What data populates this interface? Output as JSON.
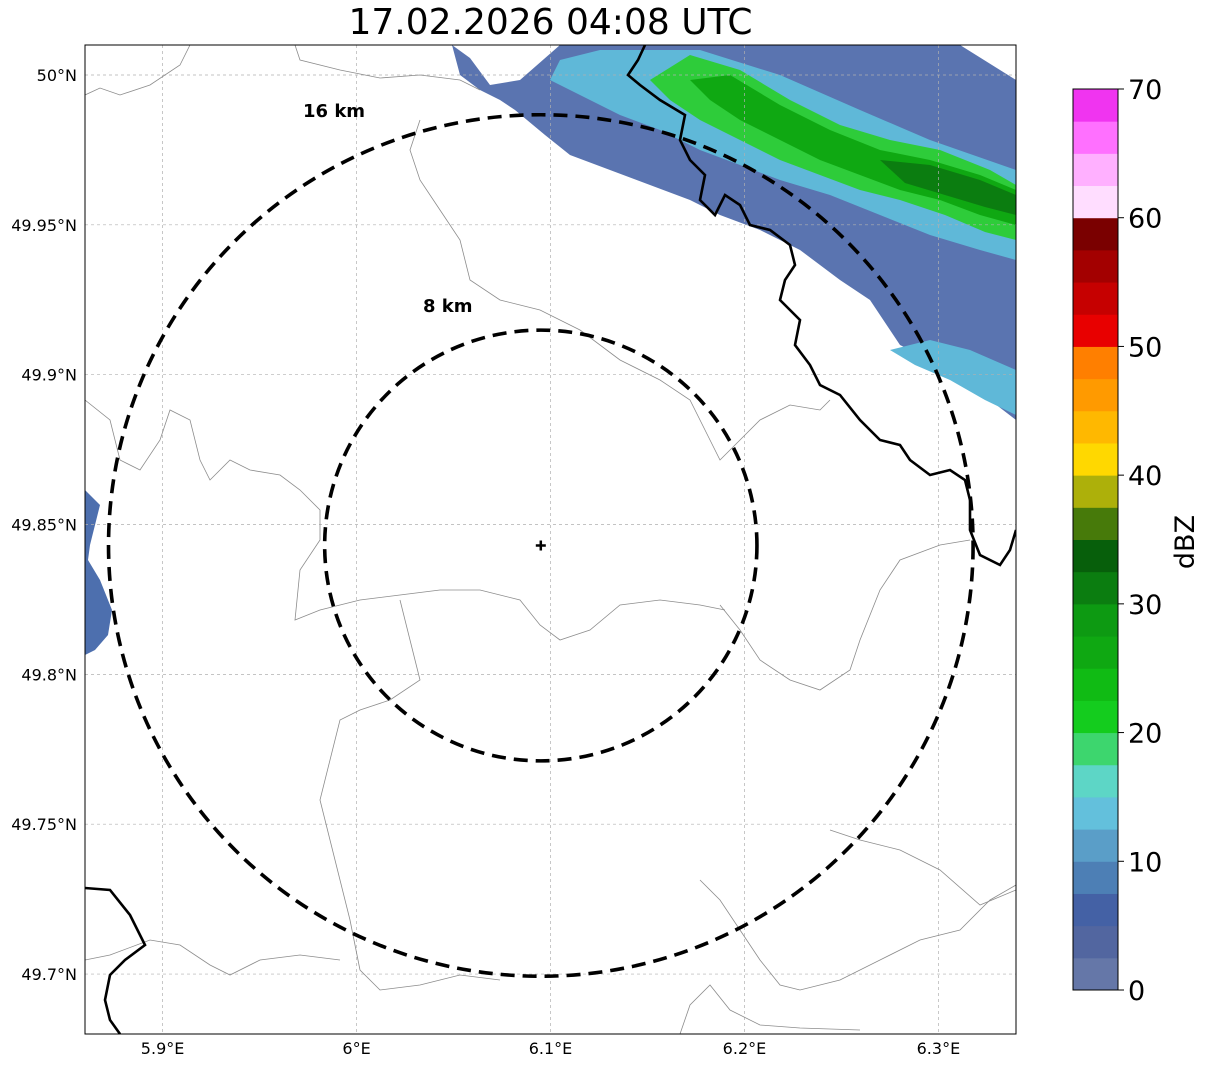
{
  "title": "17.02.2026 04:08 UTC",
  "map": {
    "lon_range": [
      5.86,
      6.34
    ],
    "lat_range": [
      49.68,
      50.01
    ],
    "center": {
      "lon": 6.095,
      "lat": 49.843
    },
    "x_ticks": [
      {
        "value": 5.9,
        "label": "5.9°E"
      },
      {
        "value": 6.0,
        "label": "6°E"
      },
      {
        "value": 6.1,
        "label": "6.1°E"
      },
      {
        "value": 6.2,
        "label": "6.2°E"
      },
      {
        "value": 6.3,
        "label": "6.3°E"
      }
    ],
    "y_ticks": [
      {
        "value": 49.7,
        "label": "49.7°N"
      },
      {
        "value": 49.75,
        "label": "49.75°N"
      },
      {
        "value": 49.8,
        "label": "49.8°N"
      },
      {
        "value": 49.85,
        "label": "49.85°N"
      },
      {
        "value": 49.9,
        "label": "49.9°N"
      },
      {
        "value": 49.95,
        "label": "49.95°N"
      },
      {
        "value": 50.0,
        "label": "50°N"
      }
    ],
    "grid": true,
    "rings": [
      {
        "radius_km": 8,
        "label": "8 km"
      },
      {
        "radius_km": 16,
        "label": "16 km"
      }
    ],
    "colors": {
      "national_border": "#000000",
      "admin_border": "#8c8c8c",
      "gridline": "#b0b0b0"
    }
  },
  "colorbar": {
    "label": "dBZ",
    "min": 0,
    "max": 70,
    "ticks": [
      {
        "value": 0,
        "label": "0"
      },
      {
        "value": 10,
        "label": "10"
      },
      {
        "value": 20,
        "label": "20"
      },
      {
        "value": 30,
        "label": "30"
      },
      {
        "value": 40,
        "label": "40"
      },
      {
        "value": 50,
        "label": "50"
      },
      {
        "value": 60,
        "label": "60"
      },
      {
        "value": 70,
        "label": "70"
      }
    ],
    "colors": [
      "#6577a8",
      "#5266a0",
      "#4461a5",
      "#4d7fb5",
      "#5a9ec8",
      "#63c0dc",
      "#5dd6c6",
      "#3dd66e",
      "#14cc1e",
      "#10bb14",
      "#0fa812",
      "#0d9a12",
      "#0b7d10",
      "#075f0b",
      "#477a0a",
      "#adb00a",
      "#ffd800",
      "#ffb800",
      "#ff9a00",
      "#ff7f00",
      "#e80000",
      "#c60000",
      "#a30000",
      "#7a0000",
      "#ffddff",
      "#ffb0ff",
      "#ff70ff",
      "#f034f0"
    ]
  },
  "precipitation": {
    "description_bands": [
      {
        "name": "north-band",
        "dbz_range": [
          2,
          28
        ]
      },
      {
        "name": "west-edge",
        "dbz_range": [
          3,
          8
        ]
      }
    ]
  }
}
